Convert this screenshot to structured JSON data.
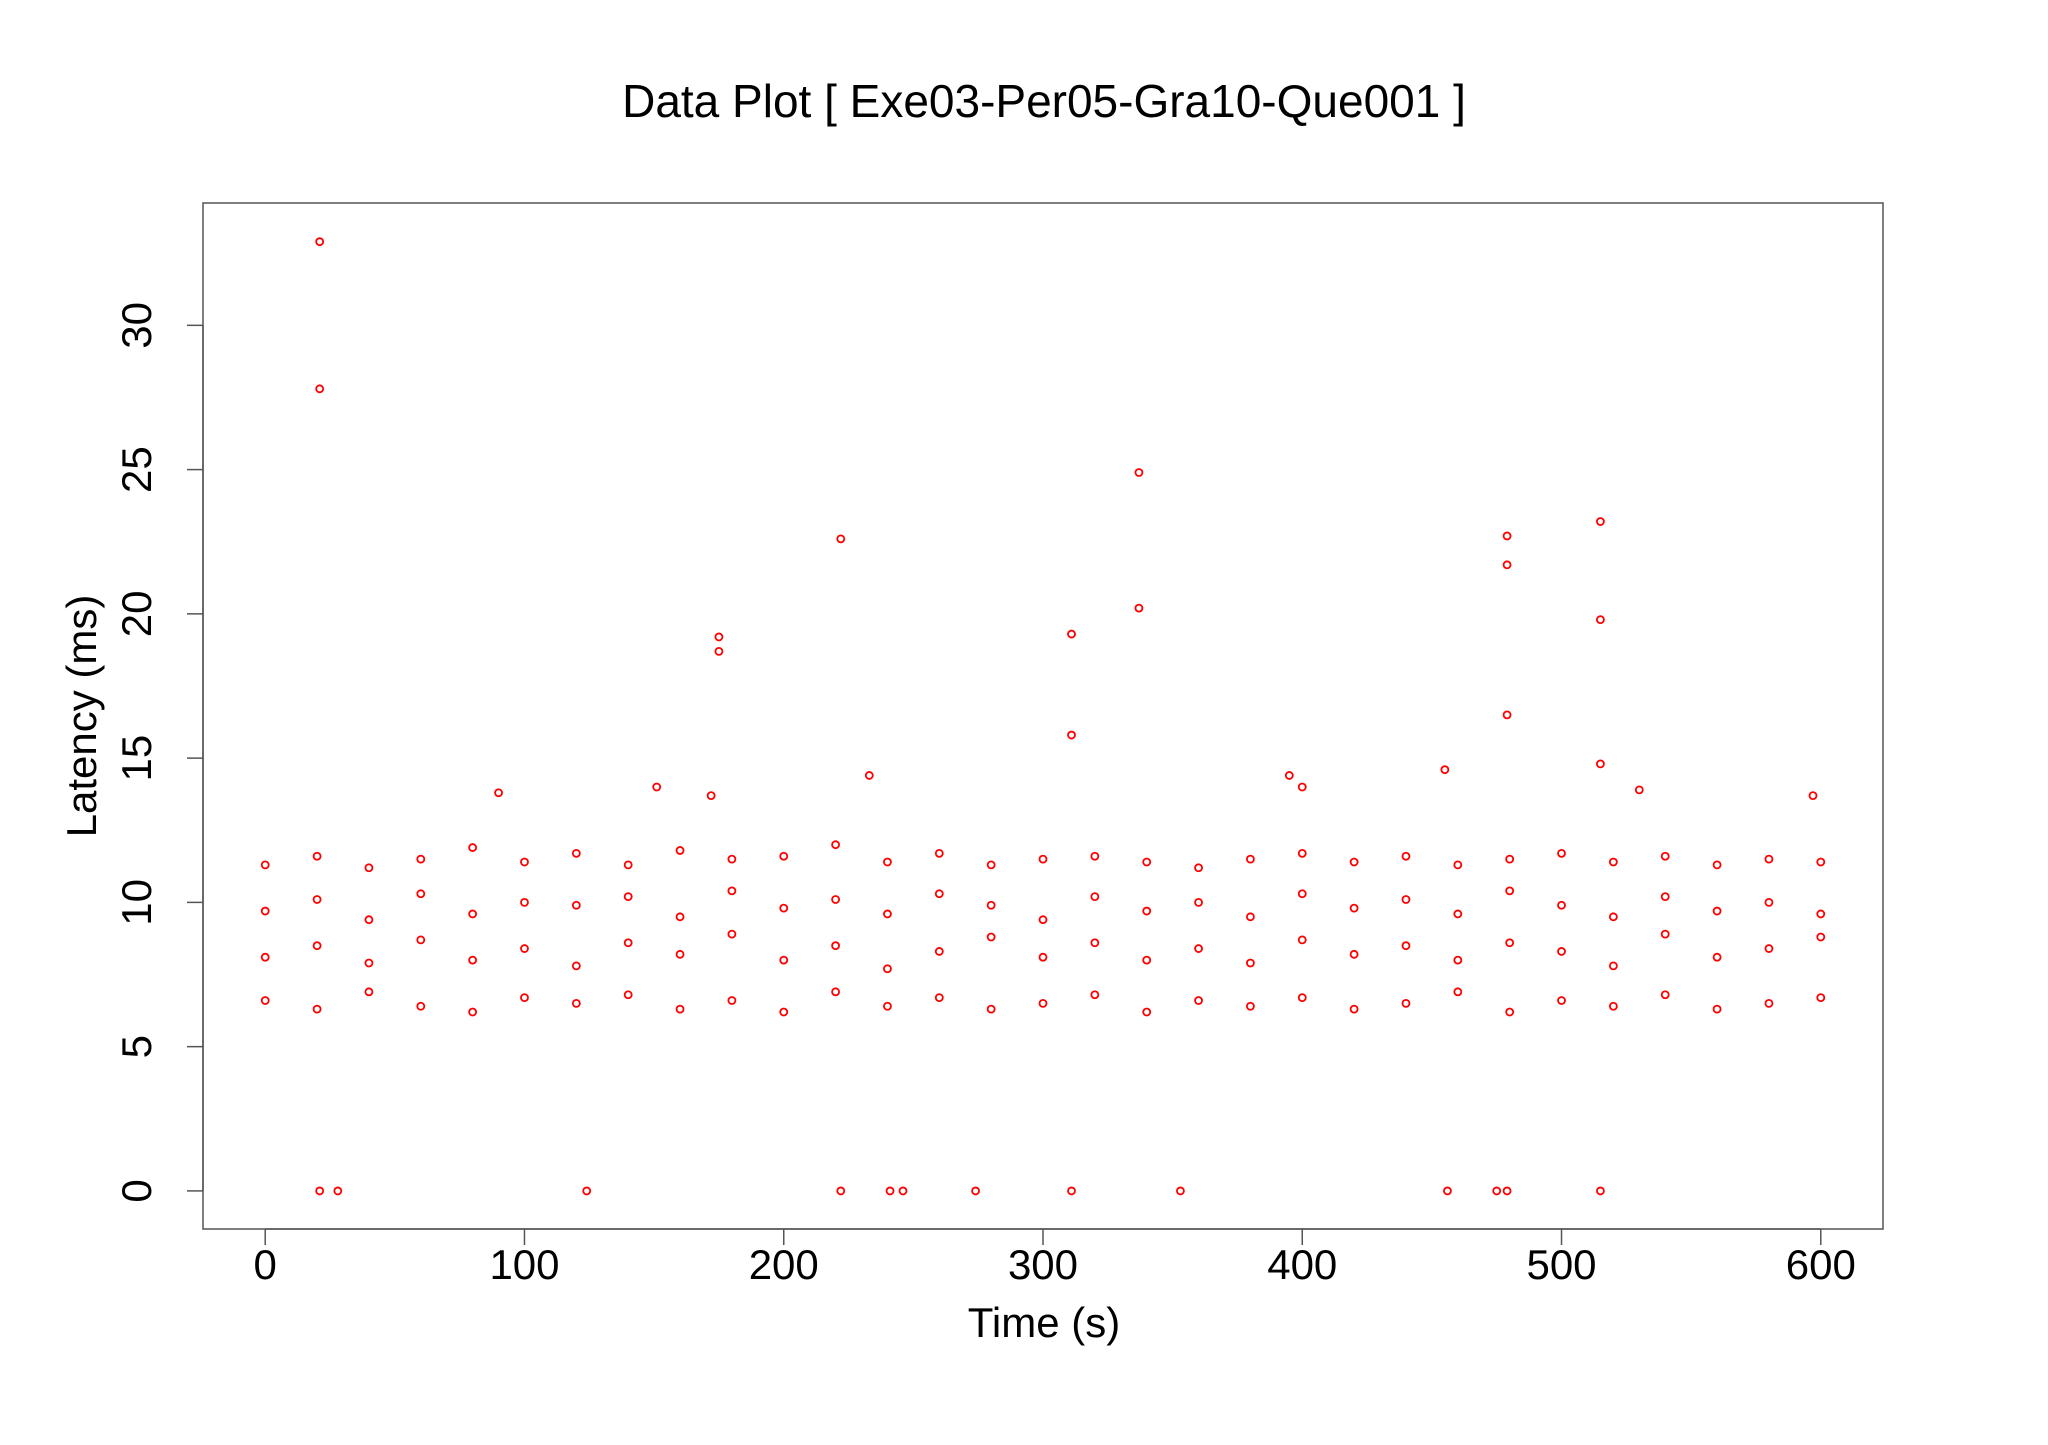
{
  "chart_data": {
    "type": "scatter",
    "title": "Data Plot [ Exe03-Per05-Gra10-Que001 ]",
    "x_label": "Time (s)",
    "y_label": "Latency (ms)",
    "color": "#ff0000",
    "xlim": [
      -24,
      624
    ],
    "ylim": [
      -1.32,
      34.24
    ],
    "xticks": [
      0,
      100,
      200,
      300,
      400,
      500,
      600
    ],
    "yticks": [
      0,
      5,
      10,
      15,
      20,
      25,
      30
    ],
    "x": [
      0,
      0,
      0,
      0,
      20,
      20,
      20,
      20,
      40,
      40,
      40,
      40,
      60,
      60,
      60,
      60,
      80,
      80,
      80,
      80,
      100,
      100,
      100,
      100,
      120,
      120,
      120,
      120,
      140,
      140,
      140,
      140,
      160,
      160,
      160,
      160,
      180,
      180,
      180,
      180,
      200,
      200,
      200,
      200,
      220,
      220,
      220,
      220,
      240,
      240,
      240,
      240,
      260,
      260,
      260,
      260,
      280,
      280,
      280,
      280,
      300,
      300,
      300,
      300,
      320,
      320,
      320,
      320,
      340,
      340,
      340,
      340,
      360,
      360,
      360,
      360,
      380,
      380,
      380,
      380,
      400,
      400,
      400,
      400,
      420,
      420,
      420,
      420,
      440,
      440,
      440,
      440,
      460,
      460,
      460,
      460,
      480,
      480,
      480,
      480,
      500,
      500,
      500,
      500,
      520,
      520,
      520,
      520,
      540,
      540,
      540,
      540,
      560,
      560,
      560,
      560,
      580,
      580,
      580,
      580,
      600,
      600,
      600,
      600,
      21,
      21,
      21,
      28,
      124,
      222,
      222,
      241,
      246,
      274,
      311,
      311,
      311,
      337,
      337,
      353,
      456,
      475,
      479,
      479,
      479,
      479,
      515,
      515,
      515,
      515,
      175,
      175,
      233,
      151,
      395,
      400,
      455,
      530,
      597,
      90,
      172
    ],
    "values": [
      6.6,
      8.1,
      9.7,
      11.3,
      6.3,
      8.5,
      10.1,
      11.6,
      6.9,
      7.9,
      9.4,
      11.2,
      6.4,
      8.7,
      10.3,
      11.5,
      6.2,
      8.0,
      9.6,
      11.9,
      6.7,
      8.4,
      10.0,
      11.4,
      6.5,
      7.8,
      9.9,
      11.7,
      6.8,
      8.6,
      10.2,
      11.3,
      6.3,
      8.2,
      9.5,
      11.8,
      6.6,
      8.9,
      10.4,
      11.5,
      6.2,
      8.0,
      9.8,
      11.6,
      6.9,
      8.5,
      10.1,
      12.0,
      6.4,
      7.7,
      9.6,
      11.4,
      6.7,
      8.3,
      10.3,
      11.7,
      6.3,
      8.8,
      9.9,
      11.3,
      6.5,
      8.1,
      9.4,
      11.5,
      6.8,
      8.6,
      10.2,
      11.6,
      6.2,
      8.0,
      9.7,
      11.4,
      6.6,
      8.4,
      10.0,
      11.2,
      6.4,
      7.9,
      9.5,
      11.5,
      6.7,
      8.7,
      10.3,
      11.7,
      6.3,
      8.2,
      9.8,
      11.4,
      6.5,
      8.5,
      10.1,
      11.6,
      6.9,
      8.0,
      9.6,
      11.3,
      6.2,
      8.6,
      10.4,
      11.5,
      6.6,
      8.3,
      9.9,
      11.7,
      6.4,
      7.8,
      9.5,
      11.4,
      6.8,
      8.9,
      10.2,
      11.6,
      6.3,
      8.1,
      9.7,
      11.3,
      6.5,
      8.4,
      10.0,
      11.5,
      6.7,
      8.8,
      9.6,
      11.4,
      32.9,
      27.8,
      0,
      0,
      0,
      22.6,
      0,
      0,
      0,
      0,
      19.3,
      15.8,
      0,
      24.9,
      20.2,
      0,
      0,
      0,
      22.7,
      21.7,
      16.5,
      0,
      23.2,
      19.8,
      14.8,
      0,
      19.2,
      18.7,
      14.4,
      14,
      14.4,
      14,
      14.6,
      13.9,
      13.7,
      13.8,
      13.7
    ]
  }
}
